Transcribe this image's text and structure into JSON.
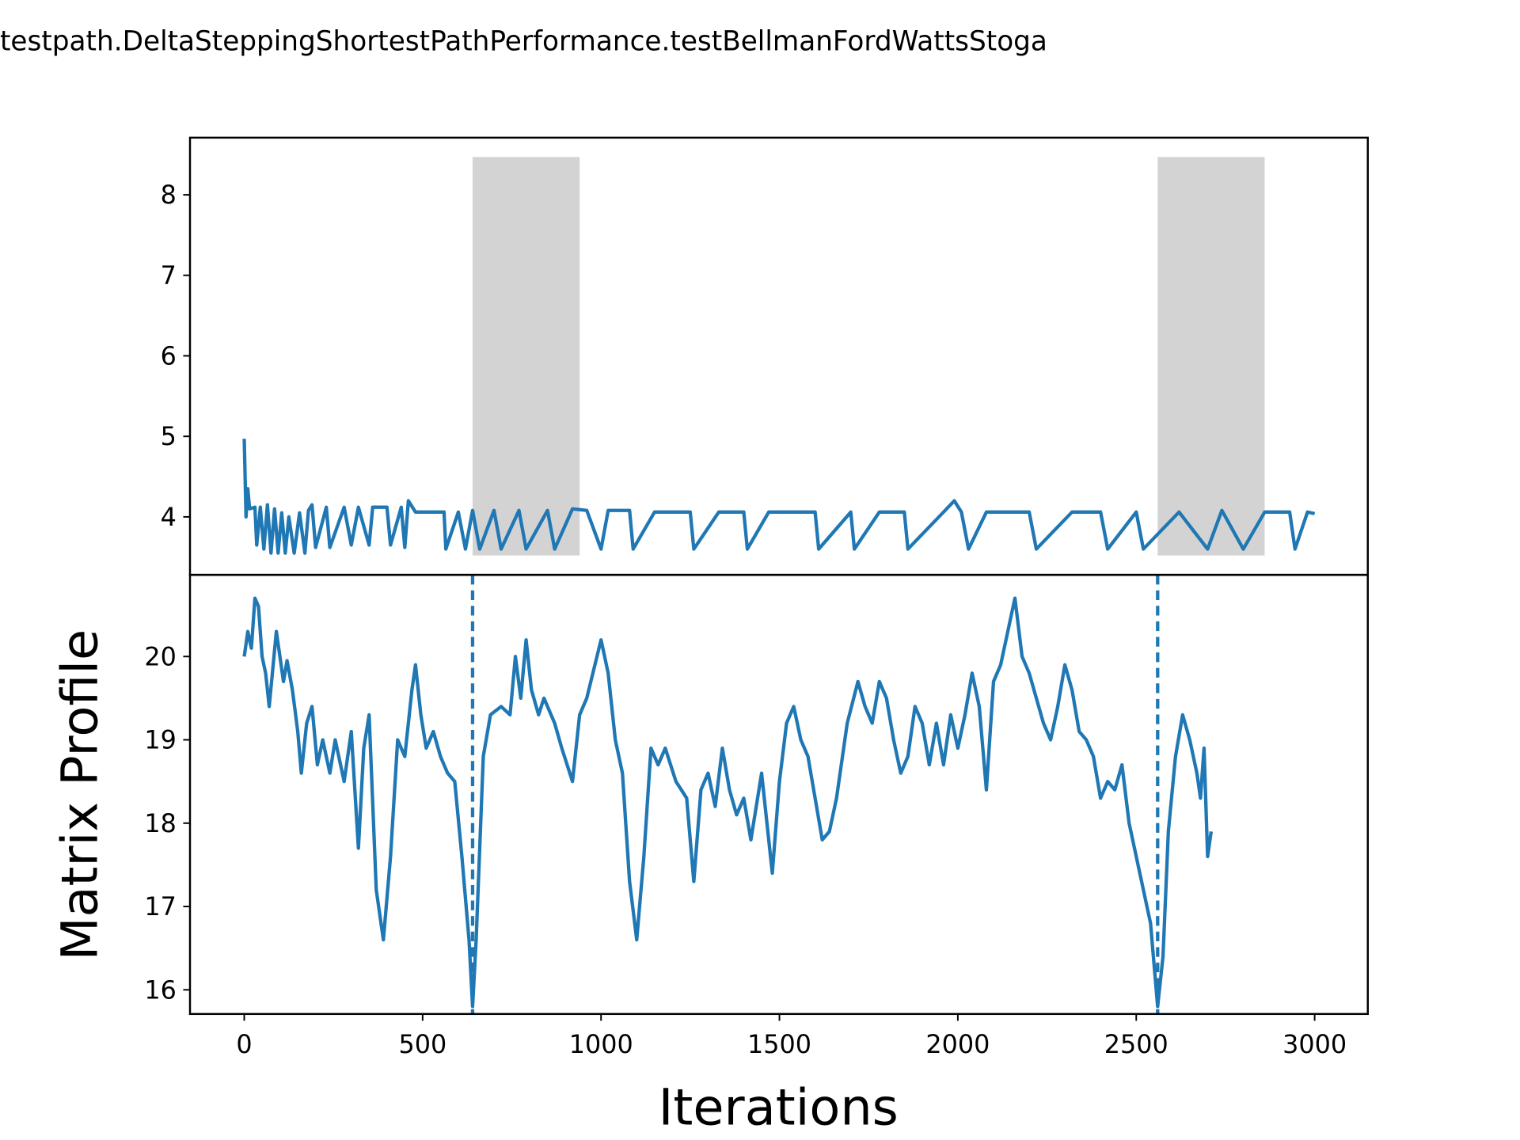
{
  "chart_data": [
    {
      "type": "line",
      "title": "testpath.DeltaSteppingShortestPathPerformance.testBellmanFordWattsStoga",
      "x": [
        0,
        5,
        10,
        15,
        30,
        35,
        45,
        55,
        65,
        75,
        85,
        95,
        105,
        115,
        125,
        140,
        155,
        170,
        180,
        190,
        200,
        230,
        240,
        280,
        300,
        320,
        350,
        360,
        400,
        410,
        440,
        450,
        460,
        480,
        560,
        565,
        600,
        620,
        640,
        660,
        700,
        720,
        770,
        790,
        850,
        870,
        920,
        960,
        1000,
        1020,
        1080,
        1090,
        1150,
        1250,
        1260,
        1330,
        1400,
        1410,
        1470,
        1600,
        1610,
        1700,
        1710,
        1780,
        1850,
        1860,
        1960,
        1990,
        2010,
        2030,
        2080,
        2200,
        2220,
        2320,
        2400,
        2420,
        2500,
        2520,
        2620,
        2700,
        2740,
        2800,
        2860,
        2930,
        2945,
        2980,
        3000
      ],
      "series": [
        {
          "color": "#1f77b4",
          "values": [
            4.97,
            4.0,
            4.35,
            4.1,
            4.12,
            3.65,
            4.12,
            3.6,
            4.15,
            3.55,
            4.1,
            3.55,
            4.05,
            3.55,
            4.0,
            3.55,
            4.05,
            3.55,
            4.08,
            4.15,
            3.62,
            4.12,
            3.62,
            4.12,
            3.65,
            4.12,
            3.65,
            4.12,
            4.12,
            3.65,
            4.12,
            3.62,
            4.2,
            4.06,
            4.06,
            3.6,
            4.06,
            3.6,
            4.08,
            3.6,
            4.08,
            3.6,
            4.08,
            3.6,
            4.08,
            3.6,
            4.1,
            4.08,
            3.6,
            4.08,
            4.08,
            3.6,
            4.06,
            4.06,
            3.6,
            4.06,
            4.06,
            3.6,
            4.06,
            4.06,
            3.6,
            4.06,
            3.6,
            4.06,
            4.06,
            3.6,
            4.06,
            4.2,
            4.06,
            3.6,
            4.06,
            4.06,
            3.6,
            4.06,
            4.06,
            3.6,
            4.06,
            3.6,
            4.06,
            3.6,
            4.08,
            3.6,
            4.06,
            4.06,
            3.6,
            4.06,
            4.04
          ]
        }
      ],
      "shaded_regions": [
        [
          640,
          940
        ],
        [
          2560,
          2860
        ]
      ],
      "shade_color": "#d3d3d3",
      "xlim": [
        -152,
        3149
      ],
      "ylim": [
        3.28,
        8.71
      ],
      "yticks": [
        4,
        5,
        6,
        7,
        8
      ]
    },
    {
      "type": "line",
      "xlabel": "Iterations",
      "ylabel": "Matrix Profile",
      "x": [
        0,
        10,
        20,
        30,
        40,
        50,
        60,
        70,
        90,
        110,
        120,
        135,
        150,
        160,
        175,
        190,
        205,
        220,
        240,
        255,
        280,
        300,
        320,
        335,
        350,
        370,
        390,
        410,
        430,
        450,
        470,
        480,
        495,
        510,
        530,
        550,
        570,
        590,
        610,
        630,
        640,
        650,
        670,
        690,
        720,
        745,
        760,
        775,
        790,
        805,
        825,
        840,
        870,
        890,
        920,
        940,
        960,
        1000,
        1020,
        1040,
        1060,
        1080,
        1100,
        1120,
        1140,
        1160,
        1180,
        1210,
        1240,
        1260,
        1280,
        1300,
        1320,
        1340,
        1360,
        1380,
        1400,
        1420,
        1450,
        1480,
        1500,
        1520,
        1540,
        1560,
        1580,
        1600,
        1620,
        1640,
        1660,
        1690,
        1720,
        1740,
        1760,
        1780,
        1800,
        1820,
        1840,
        1860,
        1880,
        1900,
        1920,
        1940,
        1960,
        1980,
        2000,
        2020,
        2040,
        2060,
        2080,
        2100,
        2120,
        2140,
        2160,
        2180,
        2200,
        2220,
        2240,
        2260,
        2280,
        2300,
        2320,
        2340,
        2360,
        2380,
        2400,
        2420,
        2440,
        2460,
        2480,
        2500,
        2520,
        2540,
        2560,
        2575,
        2590,
        2610,
        2630,
        2650,
        2670,
        2680,
        2690,
        2700,
        2710
      ],
      "series": [
        {
          "color": "#1f77b4",
          "values": [
            20.0,
            20.3,
            20.1,
            20.7,
            20.6,
            20.0,
            19.8,
            19.4,
            20.3,
            19.7,
            19.95,
            19.6,
            19.1,
            18.6,
            19.2,
            19.4,
            18.7,
            19.0,
            18.6,
            19.0,
            18.5,
            19.1,
            17.7,
            18.9,
            19.3,
            17.2,
            16.6,
            17.6,
            19.0,
            18.8,
            19.6,
            19.9,
            19.3,
            18.9,
            19.1,
            18.8,
            18.6,
            18.5,
            17.6,
            16.6,
            15.8,
            16.6,
            18.8,
            19.3,
            19.4,
            19.3,
            20.0,
            19.5,
            20.2,
            19.6,
            19.3,
            19.5,
            19.2,
            18.9,
            18.5,
            19.3,
            19.5,
            20.2,
            19.8,
            19.0,
            18.6,
            17.3,
            16.6,
            17.6,
            18.9,
            18.7,
            18.9,
            18.5,
            18.3,
            17.3,
            18.4,
            18.6,
            18.2,
            18.9,
            18.4,
            18.1,
            18.3,
            17.8,
            18.6,
            17.4,
            18.5,
            19.2,
            19.4,
            19.0,
            18.8,
            18.3,
            17.8,
            17.9,
            18.3,
            19.2,
            19.7,
            19.4,
            19.2,
            19.7,
            19.5,
            19.0,
            18.6,
            18.8,
            19.4,
            19.2,
            18.7,
            19.2,
            18.7,
            19.3,
            18.9,
            19.3,
            19.8,
            19.4,
            18.4,
            19.7,
            19.9,
            20.3,
            20.7,
            20.0,
            19.8,
            19.5,
            19.2,
            19.0,
            19.4,
            19.9,
            19.6,
            19.1,
            19.0,
            18.8,
            18.3,
            18.5,
            18.4,
            18.7,
            18.0,
            17.6,
            17.2,
            16.8,
            15.8,
            16.4,
            17.9,
            18.8,
            19.3,
            19.0,
            18.6,
            18.3,
            18.9,
            17.6,
            17.9
          ]
        }
      ],
      "vlines": [
        640,
        2560
      ],
      "xlim": [
        -152,
        3149
      ],
      "ylim": [
        15.71,
        20.98
      ],
      "xticks": [
        0,
        500,
        1000,
        1500,
        2000,
        2500,
        3000
      ],
      "yticks": [
        16,
        17,
        18,
        19,
        20
      ]
    }
  ]
}
